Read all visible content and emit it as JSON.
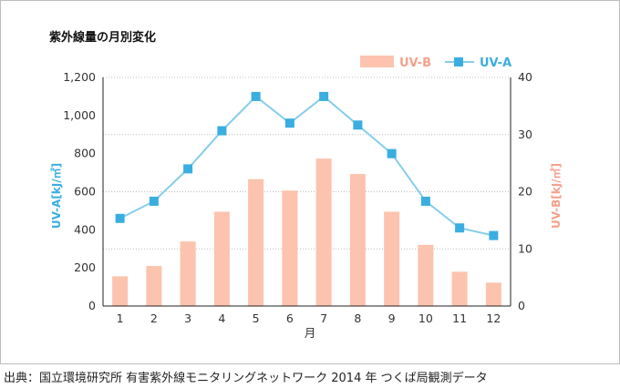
{
  "title": "紫外線量の月別変化",
  "source": "出典：国立環境研究所 有害紫外線モニタリングネットワーク 2014 年 つくば局観測データ",
  "colors": {
    "uva": "#3aaee0",
    "uvb_bar": "#fcc3ae",
    "uvb_text": "#f4a18c",
    "grid": "#bdbdbd"
  },
  "chart_data": {
    "type": "bar+line",
    "xlabel": "月",
    "categories": [
      "1",
      "2",
      "3",
      "4",
      "5",
      "6",
      "7",
      "8",
      "9",
      "10",
      "11",
      "12"
    ],
    "left_axis": {
      "label": "UV-A[kJ/㎡]",
      "ticks": [
        "0",
        "200",
        "400",
        "600",
        "800",
        "1,000",
        "1,200"
      ],
      "range": [
        0,
        1200
      ]
    },
    "right_axis": {
      "label": "UV-B[kJ/㎡]",
      "ticks": [
        "0",
        "10",
        "20",
        "30",
        "40"
      ],
      "range": [
        0,
        40
      ]
    },
    "series": [
      {
        "name": "UV-B",
        "type": "bar",
        "axis": "right",
        "values": [
          5.2,
          7.0,
          11.3,
          16.5,
          22.2,
          20.2,
          25.8,
          23.1,
          16.5,
          10.7,
          6.0,
          4.1
        ]
      },
      {
        "name": "UV-A",
        "type": "line",
        "axis": "left",
        "values": [
          460,
          550,
          720,
          920,
          1100,
          960,
          1100,
          950,
          800,
          550,
          410,
          370
        ]
      }
    ],
    "legend_position": "top-right",
    "grid": "horizontal dotted"
  }
}
